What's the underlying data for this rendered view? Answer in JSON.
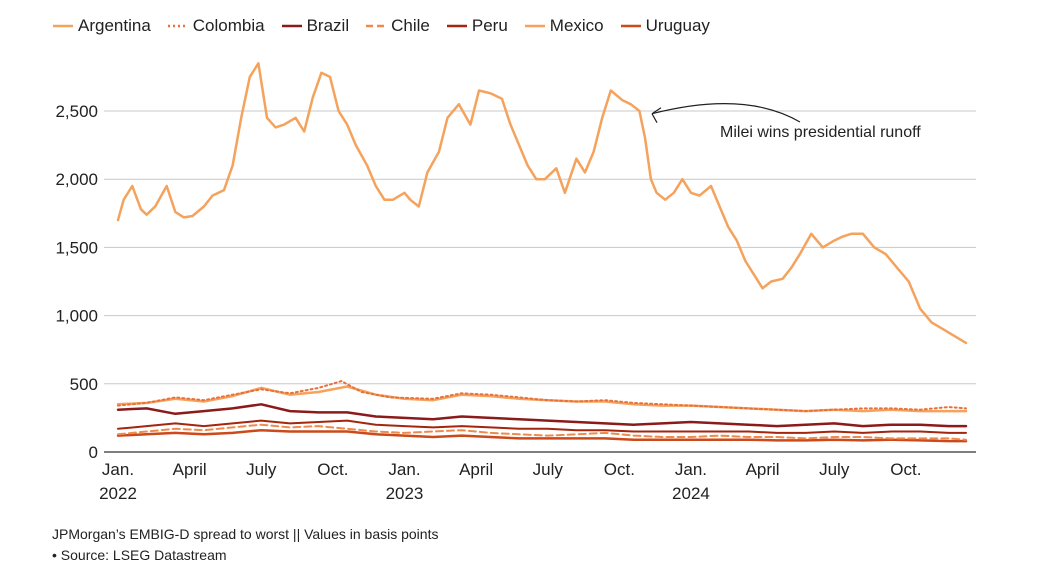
{
  "chart_data": {
    "type": "line",
    "title": "",
    "xlabel": "",
    "ylabel": "",
    "ylim": [
      0,
      3000
    ],
    "yticks": [
      0,
      500,
      1000,
      1500,
      2000,
      2500
    ],
    "ytick_labels": [
      "0",
      "500",
      "1,000",
      "1,500",
      "2,000",
      "2,500"
    ],
    "xlim": [
      2022.0,
      2024.96
    ],
    "xticks": [
      {
        "x": 2022.0,
        "label": "Jan.",
        "sublabel": "2022"
      },
      {
        "x": 2022.25,
        "label": "April",
        "sublabel": ""
      },
      {
        "x": 2022.5,
        "label": "July",
        "sublabel": ""
      },
      {
        "x": 2022.75,
        "label": "Oct.",
        "sublabel": ""
      },
      {
        "x": 2023.0,
        "label": "Jan.",
        "sublabel": "2023"
      },
      {
        "x": 2023.25,
        "label": "April",
        "sublabel": ""
      },
      {
        "x": 2023.5,
        "label": "July",
        "sublabel": ""
      },
      {
        "x": 2023.75,
        "label": "Oct.",
        "sublabel": ""
      },
      {
        "x": 2024.0,
        "label": "Jan.",
        "sublabel": "2024"
      },
      {
        "x": 2024.25,
        "label": "April",
        "sublabel": ""
      },
      {
        "x": 2024.5,
        "label": "July",
        "sublabel": ""
      },
      {
        "x": 2024.75,
        "label": "Oct.",
        "sublabel": ""
      }
    ],
    "legend_position": "top-left",
    "series": [
      {
        "name": "Argentina",
        "color": "#f5a25d",
        "dash": "solid",
        "width": 2.5,
        "x": [
          2022.0,
          2022.02,
          2022.05,
          2022.08,
          2022.1,
          2022.13,
          2022.17,
          2022.2,
          2022.23,
          2022.26,
          2022.3,
          2022.33,
          2022.37,
          2022.4,
          2022.43,
          2022.46,
          2022.49,
          2022.52,
          2022.55,
          2022.58,
          2022.62,
          2022.65,
          2022.68,
          2022.71,
          2022.74,
          2022.77,
          2022.8,
          2022.83,
          2022.87,
          2022.9,
          2022.93,
          2022.96,
          2023.0,
          2023.02,
          2023.05,
          2023.08,
          2023.12,
          2023.15,
          2023.19,
          2023.23,
          2023.26,
          2023.3,
          2023.34,
          2023.37,
          2023.4,
          2023.43,
          2023.46,
          2023.49,
          2023.53,
          2023.56,
          2023.6,
          2023.63,
          2023.66,
          2023.69,
          2023.72,
          2023.76,
          2023.79,
          2023.82,
          2023.84,
          2023.86,
          2023.88,
          2023.91,
          2023.94,
          2023.97,
          2024.0,
          2024.03,
          2024.07,
          2024.1,
          2024.13,
          2024.16,
          2024.19,
          2024.22,
          2024.25,
          2024.28,
          2024.32,
          2024.35,
          2024.38,
          2024.42,
          2024.46,
          2024.5,
          2024.53,
          2024.56,
          2024.6,
          2024.64,
          2024.68,
          2024.72,
          2024.76,
          2024.8,
          2024.84,
          2024.88,
          2024.92,
          2024.96
        ],
        "values": [
          1700,
          1850,
          1950,
          1780,
          1740,
          1800,
          1950,
          1760,
          1720,
          1730,
          1800,
          1880,
          1920,
          2100,
          2450,
          2750,
          2850,
          2450,
          2380,
          2400,
          2450,
          2350,
          2600,
          2780,
          2750,
          2500,
          2400,
          2250,
          2100,
          1950,
          1850,
          1850,
          1900,
          1850,
          1800,
          2050,
          2200,
          2450,
          2550,
          2400,
          2650,
          2630,
          2590,
          2400,
          2250,
          2100,
          2000,
          2000,
          2080,
          1900,
          2150,
          2050,
          2200,
          2450,
          2650,
          2580,
          2550,
          2500,
          2300,
          2000,
          1900,
          1850,
          1900,
          2000,
          1900,
          1880,
          1950,
          1800,
          1650,
          1550,
          1400,
          1300,
          1200,
          1250,
          1270,
          1350,
          1450,
          1600,
          1500,
          1550,
          1580,
          1600,
          1600,
          1500,
          1450,
          1350,
          1250,
          1050,
          950,
          900,
          850,
          800
        ]
      },
      {
        "name": "Colombia",
        "color": "#e8713a",
        "dash": "dotted",
        "width": 2,
        "x": [
          2022.0,
          2022.1,
          2022.2,
          2022.3,
          2022.4,
          2022.5,
          2022.6,
          2022.7,
          2022.78,
          2022.85,
          2022.95,
          2023.1,
          2023.2,
          2023.3,
          2023.4,
          2023.5,
          2023.6,
          2023.7,
          2023.8,
          2023.9,
          2024.0,
          2024.1,
          2024.2,
          2024.3,
          2024.4,
          2024.5,
          2024.6,
          2024.7,
          2024.8,
          2024.9,
          2024.96
        ],
        "values": [
          340,
          360,
          400,
          380,
          420,
          460,
          430,
          470,
          520,
          440,
          400,
          390,
          430,
          420,
          400,
          380,
          370,
          380,
          360,
          350,
          340,
          330,
          320,
          310,
          300,
          310,
          320,
          320,
          310,
          330,
          320
        ]
      },
      {
        "name": "Brazil",
        "color": "#8b1a1a",
        "dash": "solid",
        "width": 2.5,
        "x": [
          2022.0,
          2022.1,
          2022.2,
          2022.3,
          2022.4,
          2022.5,
          2022.6,
          2022.7,
          2022.8,
          2022.9,
          2023.0,
          2023.1,
          2023.2,
          2023.3,
          2023.4,
          2023.5,
          2023.6,
          2023.7,
          2023.8,
          2023.9,
          2024.0,
          2024.1,
          2024.2,
          2024.3,
          2024.4,
          2024.5,
          2024.6,
          2024.7,
          2024.8,
          2024.9,
          2024.96
        ],
        "values": [
          310,
          320,
          280,
          300,
          320,
          350,
          300,
          290,
          290,
          260,
          250,
          240,
          260,
          250,
          240,
          230,
          220,
          210,
          200,
          210,
          220,
          210,
          200,
          190,
          200,
          210,
          190,
          200,
          200,
          190,
          190
        ]
      },
      {
        "name": "Chile",
        "color": "#f08a4b",
        "dash": "dashed",
        "width": 2,
        "x": [
          2022.0,
          2022.1,
          2022.2,
          2022.3,
          2022.4,
          2022.5,
          2022.6,
          2022.7,
          2022.8,
          2022.9,
          2023.0,
          2023.1,
          2023.2,
          2023.3,
          2023.4,
          2023.5,
          2023.6,
          2023.7,
          2023.8,
          2023.9,
          2024.0,
          2024.1,
          2024.2,
          2024.3,
          2024.4,
          2024.5,
          2024.6,
          2024.7,
          2024.8,
          2024.9,
          2024.96
        ],
        "values": [
          130,
          150,
          170,
          160,
          180,
          200,
          180,
          190,
          170,
          150,
          140,
          150,
          160,
          140,
          130,
          120,
          130,
          140,
          120,
          110,
          110,
          120,
          110,
          110,
          100,
          110,
          110,
          100,
          100,
          100,
          90
        ]
      },
      {
        "name": "Peru",
        "color": "#a3260f",
        "dash": "solid",
        "width": 2,
        "x": [
          2022.0,
          2022.1,
          2022.2,
          2022.3,
          2022.4,
          2022.5,
          2022.6,
          2022.7,
          2022.8,
          2022.9,
          2023.0,
          2023.1,
          2023.2,
          2023.3,
          2023.4,
          2023.5,
          2023.6,
          2023.7,
          2023.8,
          2023.9,
          2024.0,
          2024.1,
          2024.2,
          2024.3,
          2024.4,
          2024.5,
          2024.6,
          2024.7,
          2024.8,
          2024.9,
          2024.96
        ],
        "values": [
          170,
          190,
          210,
          190,
          210,
          230,
          210,
          220,
          230,
          200,
          190,
          180,
          190,
          180,
          170,
          170,
          160,
          160,
          150,
          150,
          150,
          150,
          150,
          140,
          140,
          150,
          140,
          150,
          150,
          140,
          140
        ]
      },
      {
        "name": "Mexico",
        "color": "#f5a25d",
        "dash": "solid",
        "width": 2.5,
        "x": [
          2022.0,
          2022.1,
          2022.2,
          2022.3,
          2022.4,
          2022.5,
          2022.6,
          2022.7,
          2022.8,
          2022.9,
          2023.0,
          2023.1,
          2023.2,
          2023.3,
          2023.4,
          2023.5,
          2023.6,
          2023.7,
          2023.8,
          2023.9,
          2024.0,
          2024.1,
          2024.2,
          2024.3,
          2024.4,
          2024.5,
          2024.6,
          2024.7,
          2024.8,
          2024.9,
          2024.96
        ],
        "values": [
          350,
          360,
          390,
          370,
          410,
          470,
          420,
          440,
          480,
          420,
          390,
          380,
          420,
          410,
          390,
          380,
          370,
          370,
          350,
          340,
          340,
          330,
          320,
          310,
          300,
          310,
          300,
          310,
          300,
          300,
          300
        ]
      },
      {
        "name": "Uruguay",
        "color": "#cc4a1a",
        "dash": "solid",
        "width": 2.5,
        "x": [
          2022.0,
          2022.1,
          2022.2,
          2022.3,
          2022.4,
          2022.5,
          2022.6,
          2022.7,
          2022.8,
          2022.9,
          2023.0,
          2023.1,
          2023.2,
          2023.3,
          2023.4,
          2023.5,
          2023.6,
          2023.7,
          2023.8,
          2023.9,
          2024.0,
          2024.1,
          2024.2,
          2024.3,
          2024.4,
          2024.5,
          2024.6,
          2024.7,
          2024.8,
          2024.9,
          2024.96
        ],
        "values": [
          120,
          130,
          140,
          130,
          140,
          160,
          150,
          150,
          150,
          130,
          120,
          110,
          120,
          110,
          100,
          100,
          100,
          100,
          90,
          90,
          90,
          90,
          90,
          85,
          85,
          90,
          85,
          90,
          85,
          80,
          80
        ]
      }
    ],
    "annotation": {
      "text": "Milei wins presidential runoff",
      "x": 2023.85,
      "y": 2480
    }
  },
  "footer": {
    "note": "JPMorgan’s EMBIG-D spread to worst || Values in basis points",
    "source": "• Source: LSEG Datastream"
  }
}
